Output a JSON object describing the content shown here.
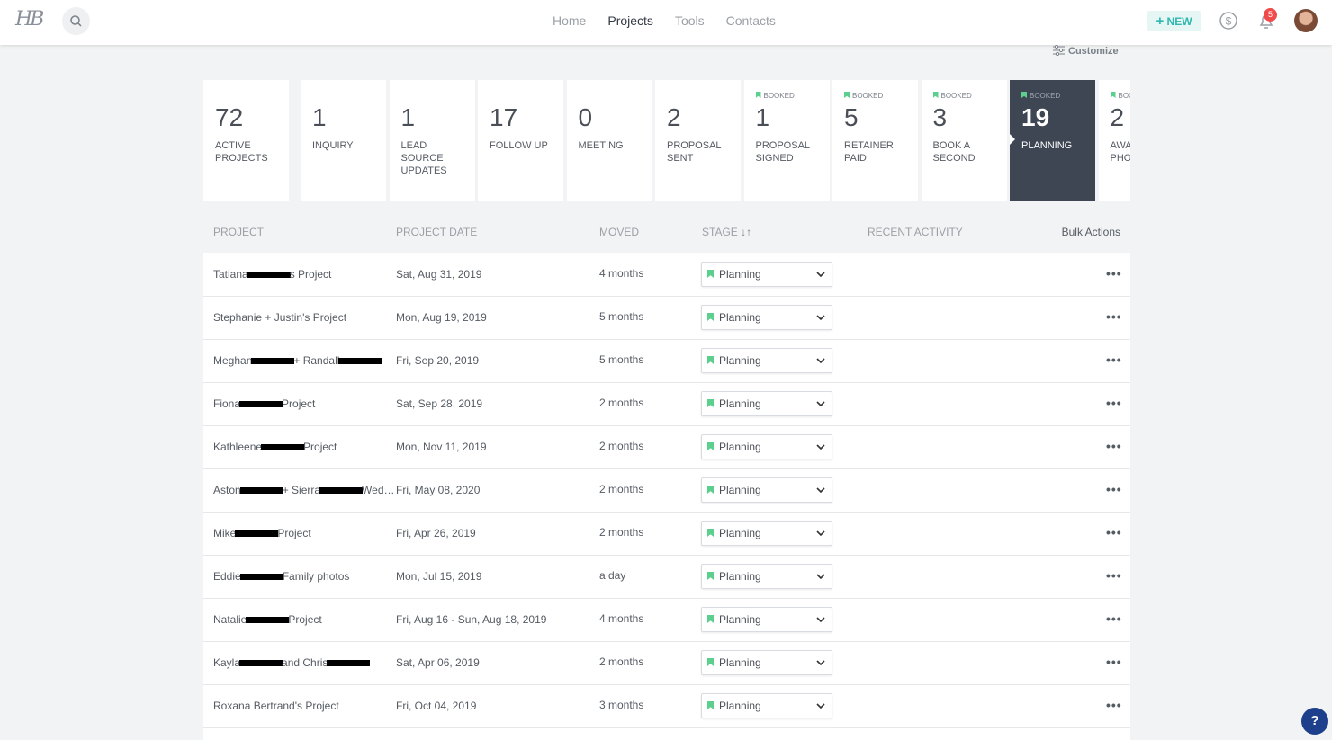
{
  "header": {
    "logo": "HB",
    "nav": [
      "Home",
      "Projects",
      "Tools",
      "Contacts"
    ],
    "active_nav": 1,
    "new_button": "NEW",
    "notification_count": "5"
  },
  "customize": "Customize",
  "stages": [
    {
      "count": "72",
      "label": "ACTIVE PROJECTS"
    },
    {
      "count": "1",
      "label": "INQUIRY"
    },
    {
      "count": "1",
      "label": "LEAD SOURCE UPDATES"
    },
    {
      "count": "17",
      "label": "FOLLOW UP"
    },
    {
      "count": "0",
      "label": "MEETING"
    },
    {
      "count": "2",
      "label": "PROPOSAL SENT"
    },
    {
      "count": "1",
      "label": "PROPOSAL SIGNED",
      "badge": "BOOKED"
    },
    {
      "count": "5",
      "label": "RETAINER PAID",
      "badge": "BOOKED"
    },
    {
      "count": "3",
      "label": "BOOK A SECOND",
      "badge": "BOOKED"
    },
    {
      "count": "19",
      "label": "PLANNING",
      "badge": "BOOKED",
      "active": true
    },
    {
      "count": "2",
      "label": "AWAITING PHOTOS",
      "badge": "BOOKED"
    }
  ],
  "table": {
    "columns": [
      "PROJECT",
      "PROJECT DATE",
      "MOVED",
      "STAGE",
      "RECENT ACTIVITY",
      "Bulk Actions"
    ],
    "rows": [
      {
        "name_parts": [
          "Tatiana",
          "s Project"
        ],
        "date": "Sat, Aug 31, 2019",
        "moved": "4 months",
        "stage": "Planning"
      },
      {
        "name_parts": [
          "Stephanie + Justin's Project"
        ],
        "date": "Mon, Aug 19, 2019",
        "moved": "5 months",
        "stage": "Planning"
      },
      {
        "name_parts": [
          "Meghan",
          "+ Randall"
        ],
        "redacted_end": true,
        "date": "Fri, Sep 20, 2019",
        "moved": "5 months",
        "stage": "Planning"
      },
      {
        "name_parts": [
          "Fiona",
          "Project"
        ],
        "date": "Sat, Sep 28, 2019",
        "moved": "2 months",
        "stage": "Planning"
      },
      {
        "name_parts": [
          "Kathleene",
          "Project"
        ],
        "date": "Mon, Nov 11, 2019",
        "moved": "2 months",
        "stage": "Planning"
      },
      {
        "name_parts": [
          "Aston",
          "+ Sierra",
          "Wed…"
        ],
        "date": "Fri, May 08, 2020",
        "moved": "2 months",
        "stage": "Planning"
      },
      {
        "name_parts": [
          "Mike",
          "Project"
        ],
        "date": "Fri, Apr 26, 2019",
        "moved": "2 months",
        "stage": "Planning"
      },
      {
        "name_parts": [
          "Eddie",
          "Family photos"
        ],
        "date": "Mon, Jul 15, 2019",
        "moved": "a day",
        "stage": "Planning"
      },
      {
        "name_parts": [
          "Natalie",
          "Project"
        ],
        "date": "Fri, Aug 16 - Sun, Aug 18, 2019",
        "moved": "4 months",
        "stage": "Planning"
      },
      {
        "name_parts": [
          "Kayla",
          "and Chris"
        ],
        "redacted_end": true,
        "date": "Sat, Apr 06, 2019",
        "moved": "2 months",
        "stage": "Planning"
      },
      {
        "name_parts": [
          "Roxana Bertrand's Project"
        ],
        "date": "Fri, Oct 04, 2019",
        "moved": "3 months",
        "stage": "Planning"
      }
    ]
  },
  "help": "?"
}
